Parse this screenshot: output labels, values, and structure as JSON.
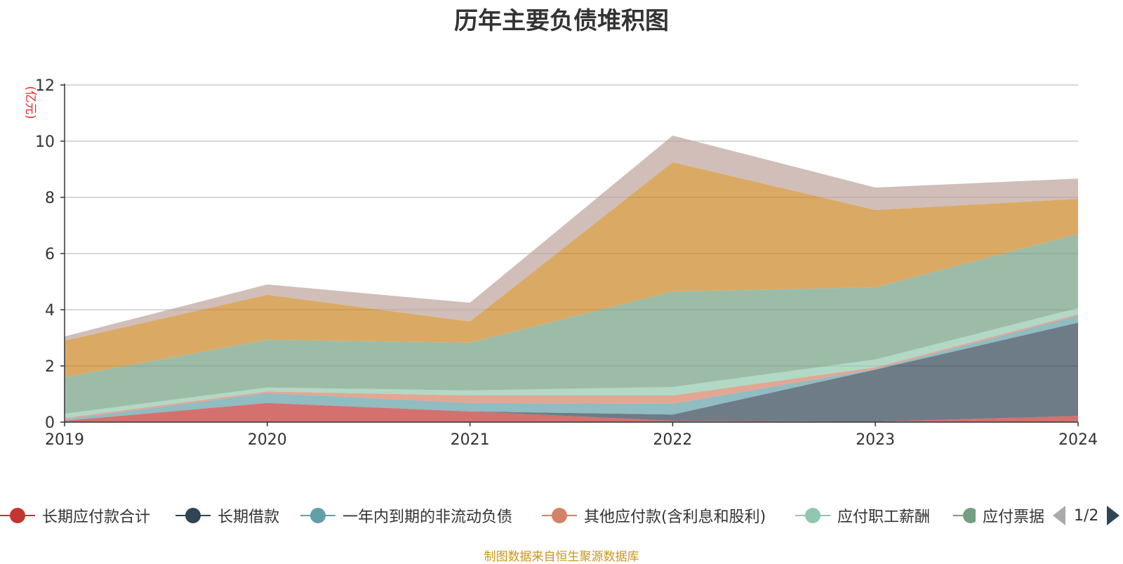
{
  "title": "历年主要负债堆积图",
  "source": "制图数据来自恒生聚源数据库",
  "legend_page": "1/2",
  "chart_data": {
    "type": "area",
    "stacked": true,
    "title": "历年主要负债堆积图",
    "ylabel": "(亿元)",
    "xlabel": "",
    "categories": [
      "2019",
      "2020",
      "2021",
      "2022",
      "2023",
      "2024"
    ],
    "ylim": [
      0,
      12
    ],
    "yticks": [
      0,
      2,
      4,
      6,
      8,
      10,
      12
    ],
    "grid": true,
    "legend_position": "bottom",
    "series": [
      {
        "name": "长期应付款合计",
        "color": "#c23531",
        "values": [
          0.05,
          0.68,
          0.38,
          0.05,
          0.02,
          0.22
        ]
      },
      {
        "name": "长期借款",
        "color": "#2f4554",
        "values": [
          0.0,
          0.0,
          0.0,
          0.22,
          1.85,
          3.32
        ]
      },
      {
        "name": "一年内到期的非流动负债",
        "color": "#61a0a8",
        "values": [
          0.05,
          0.35,
          0.3,
          0.38,
          0.02,
          0.25
        ]
      },
      {
        "name": "其他应付款(含利息和股利)",
        "color": "#d48265",
        "values": [
          0.05,
          0.06,
          0.27,
          0.3,
          0.06,
          0.05
        ]
      },
      {
        "name": "应付职工薪酬",
        "color": "#91c7ae",
        "values": [
          0.15,
          0.14,
          0.18,
          0.3,
          0.28,
          0.22
        ]
      },
      {
        "name": "应付票据",
        "color": "#749f83",
        "values": [
          1.3,
          1.7,
          1.7,
          3.4,
          2.57,
          2.64
        ]
      },
      {
        "name": "",
        "color": "#ca8622",
        "values": [
          1.3,
          1.6,
          0.75,
          4.6,
          2.75,
          1.25
        ]
      },
      {
        "name": "",
        "color": "#bda29a",
        "values": [
          0.15,
          0.37,
          0.67,
          0.95,
          0.8,
          0.72
        ]
      }
    ]
  }
}
